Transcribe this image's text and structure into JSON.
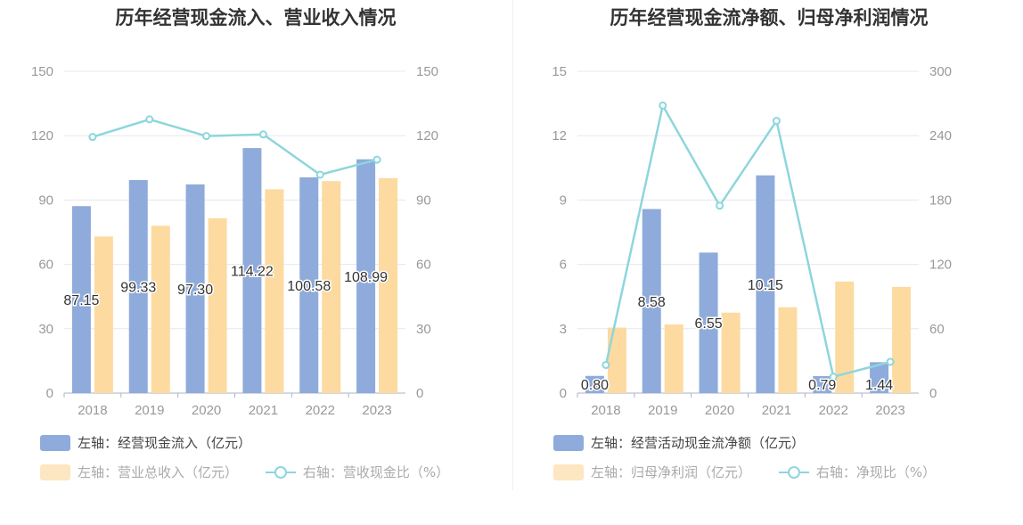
{
  "charts": [
    {
      "title": "历年经营现金流入、营业收入情况",
      "legend": {
        "bar1": {
          "axis": "左轴：",
          "label": "经营现金流入（亿元）"
        },
        "bar2": {
          "axis": "左轴：",
          "label": "营业总收入（亿元）"
        },
        "line": {
          "axis": "右轴：",
          "label": "营收现金比（%）"
        }
      }
    },
    {
      "title": "历年经营现金流净额、归母净利润情况",
      "legend": {
        "bar1": {
          "axis": "左轴：",
          "label": "经营活动现金流净额（亿元）"
        },
        "bar2": {
          "axis": "左轴：",
          "label": "归母净利润（亿元）"
        },
        "line": {
          "axis": "右轴：",
          "label": "净现比（%）"
        }
      }
    }
  ],
  "colors": {
    "bar1": "#8eabdb",
    "bar2": "#fddaa0",
    "line": "#8dd6dc",
    "grid": "#e3e8f0",
    "axis_text": "#999999"
  },
  "chart_data": [
    {
      "type": "bar",
      "title": "历年经营现金流入、营业收入情况",
      "categories": [
        "2018",
        "2019",
        "2020",
        "2021",
        "2022",
        "2023"
      ],
      "left_ticks": [
        "0",
        "30",
        "60",
        "90",
        "120",
        "150"
      ],
      "right_ticks": [
        "0",
        "30",
        "60",
        "90",
        "120",
        "150"
      ],
      "ylim_left": [
        0,
        150
      ],
      "ylim_right": [
        0,
        150
      ],
      "series": [
        {
          "name": "经营现金流入（亿元）",
          "axis": "left",
          "kind": "bar",
          "values": [
            87.15,
            99.33,
            97.3,
            114.22,
            100.58,
            108.99
          ],
          "labels": [
            "87.15",
            "99.33",
            "97.30",
            "114.22",
            "100.58",
            "108.99"
          ]
        },
        {
          "name": "营业总收入（亿元）",
          "axis": "left",
          "kind": "bar",
          "values": [
            73.0,
            78.0,
            81.5,
            95.0,
            98.8,
            100.2
          ]
        },
        {
          "name": "营收现金比（%）",
          "axis": "right",
          "kind": "line",
          "values": [
            119.4,
            127.6,
            119.8,
            120.6,
            101.8,
            108.8
          ]
        }
      ]
    },
    {
      "type": "bar",
      "title": "历年经营现金流净额、归母净利润情况",
      "categories": [
        "2018",
        "2019",
        "2020",
        "2021",
        "2022",
        "2023"
      ],
      "left_ticks": [
        "0",
        "3",
        "6",
        "9",
        "12",
        "15"
      ],
      "right_ticks": [
        "0",
        "60",
        "120",
        "180",
        "240",
        "300"
      ],
      "ylim_left": [
        0,
        15
      ],
      "ylim_right": [
        0,
        300
      ],
      "series": [
        {
          "name": "经营活动现金流净额（亿元）",
          "axis": "left",
          "kind": "bar",
          "values": [
            0.8,
            8.58,
            6.55,
            10.15,
            0.79,
            1.44
          ],
          "labels": [
            "0.80",
            "8.58",
            "6.55",
            "10.15",
            "0.79",
            "1.44"
          ]
        },
        {
          "name": "归母净利润（亿元）",
          "axis": "left",
          "kind": "bar",
          "values": [
            3.05,
            3.2,
            3.75,
            4.0,
            5.2,
            4.95
          ]
        },
        {
          "name": "净现比（%）",
          "axis": "right",
          "kind": "line",
          "values": [
            26.2,
            268.1,
            174.7,
            253.8,
            15.2,
            29.1
          ]
        }
      ]
    }
  ]
}
